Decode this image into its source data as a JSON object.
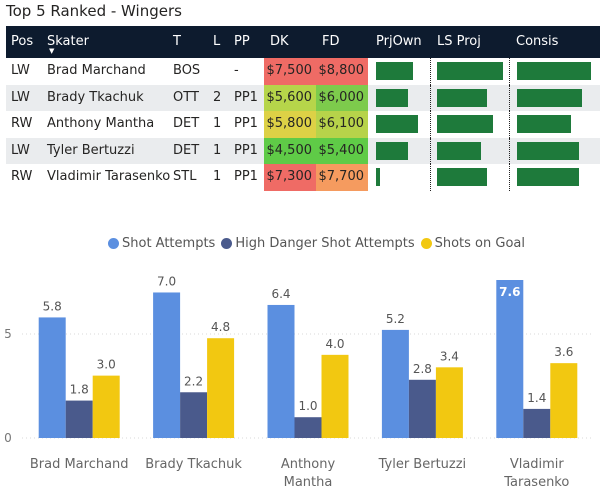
{
  "title": "Top 5 Ranked - Wingers",
  "table": {
    "headers": {
      "pos": "Pos",
      "skater": "Skater",
      "team": "T",
      "line": "L",
      "pp": "PP",
      "dk": "DK",
      "fd": "FD",
      "prjown": "PrjOwn",
      "lsproj": "LS Proj",
      "consis": "Consis"
    },
    "rows": [
      {
        "pos": "LW",
        "skater": "Brad Marchand",
        "team": "BOS",
        "line": "",
        "pp": "-",
        "dk": "$7,500",
        "fd": "$8,800",
        "dk_color": "#ef6b65",
        "fd_color": "#ef6b65",
        "prjown": 0.72,
        "lsproj": 1.0,
        "consis": 0.98
      },
      {
        "pos": "LW",
        "skater": "Brady Tkachuk",
        "team": "OTT",
        "line": "2",
        "pp": "PP1",
        "dk": "$5,600",
        "fd": "$6,000",
        "dk_color": "#b6d54a",
        "fd_color": "#7dcb4c",
        "prjown": 0.62,
        "lsproj": 0.75,
        "consis": 0.86
      },
      {
        "pos": "RW",
        "skater": "Anthony Mantha",
        "team": "DET",
        "line": "1",
        "pp": "PP1",
        "dk": "$5,800",
        "fd": "$6,100",
        "dk_color": "#ddd146",
        "fd_color": "#b7d34a",
        "prjown": 0.8,
        "lsproj": 0.85,
        "consis": 0.72
      },
      {
        "pos": "LW",
        "skater": "Tyler Bertuzzi",
        "team": "DET",
        "line": "1",
        "pp": "PP1",
        "dk": "$4,500",
        "fd": "$5,400",
        "dk_color": "#5fcb47",
        "fd_color": "#5fcb47",
        "prjown": 0.62,
        "lsproj": 0.66,
        "consis": 0.82
      },
      {
        "pos": "RW",
        "skater": "Vladimir Tarasenko",
        "team": "STL",
        "line": "1",
        "pp": "PP1",
        "dk": "$7,300",
        "fd": "$7,700",
        "dk_color": "#ef6b65",
        "fd_color": "#f59b5f",
        "prjown": 0.08,
        "lsproj": 0.75,
        "consis": 0.82
      }
    ],
    "bar_color": "#1e7a3b"
  },
  "chart_data": {
    "type": "bar",
    "categories": [
      "Brad Marchand",
      "Brady Tkachuk",
      "Anthony Mantha",
      "Tyler Bertuzzi",
      "Vladimir Tarasenko"
    ],
    "category_lines": [
      [
        "Brad Marchand"
      ],
      [
        "Brady Tkachuk"
      ],
      [
        "Anthony",
        "Mantha"
      ],
      [
        "Tyler Bertuzzi"
      ],
      [
        "Vladimir",
        "Tarasenko"
      ]
    ],
    "series": [
      {
        "name": "Shot Attempts",
        "color": "#5b8fe0",
        "values": [
          5.8,
          7.0,
          6.4,
          5.2,
          7.6
        ]
      },
      {
        "name": "High Danger Shot Attempts",
        "color": "#4a5a8c",
        "values": [
          1.8,
          2.2,
          1.0,
          2.8,
          1.4
        ]
      },
      {
        "name": "Shots on Goal",
        "color": "#f2c811",
        "values": [
          3.0,
          4.8,
          4.0,
          3.4,
          3.6
        ]
      }
    ],
    "yticks": [
      0,
      5
    ],
    "ylim": [
      0,
      7.6
    ],
    "title": "",
    "xlabel": "",
    "ylabel": ""
  }
}
